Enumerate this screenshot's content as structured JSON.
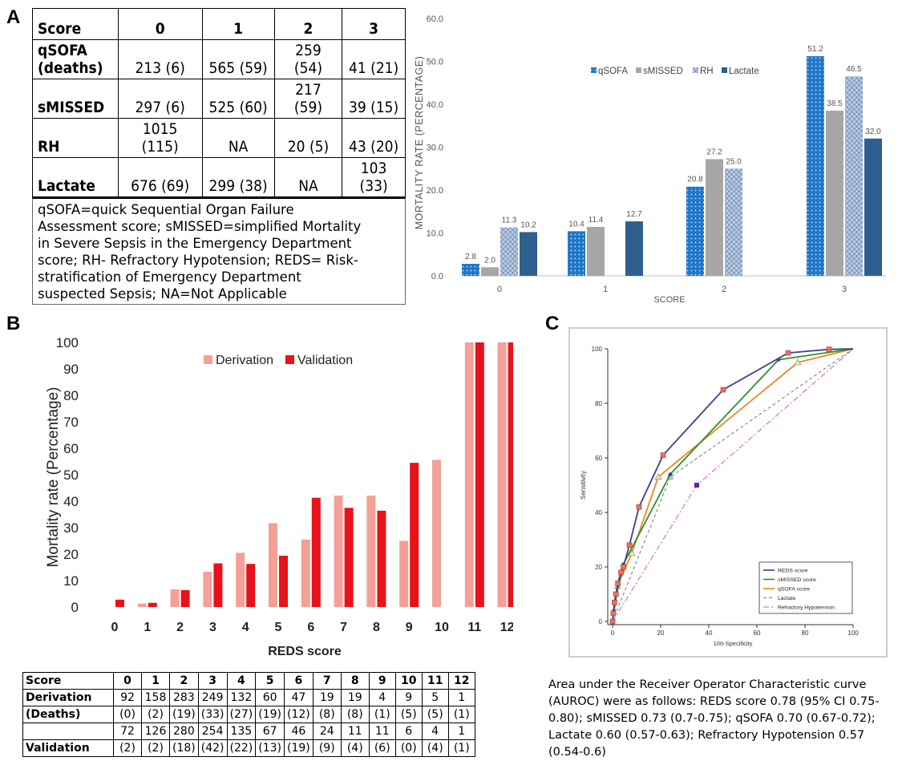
{
  "panel_labels": {
    "a": "A",
    "b": "B",
    "c": "C"
  },
  "table_a": {
    "header": [
      "Score",
      "0",
      "1",
      "2",
      "3"
    ],
    "rows": [
      {
        "label_lines": [
          "qSOFA",
          "(deaths)"
        ],
        "cells": [
          "213 (6)",
          "565 (59)",
          "259 (54)",
          "41 (21)"
        ]
      },
      {
        "label_lines": [
          "sMISSED"
        ],
        "cells": [
          "297 (6)",
          "525 (60)",
          "217 (59)",
          "39 (15)"
        ]
      },
      {
        "label_lines": [
          "RH"
        ],
        "cells": [
          "1015 (115)",
          "NA",
          "20 (5)",
          "43 (20)"
        ]
      },
      {
        "label_lines": [
          "Lactate"
        ],
        "cells": [
          "676 (69)",
          "299 (38)",
          "NA",
          "103 (33)"
        ]
      }
    ],
    "note_lines": [
      "qSOFA=quick Sequential Organ Failure",
      "Assessment score; sMISSED=simplified Mortality",
      "in Severe Sepsis in the Emergency Department",
      "score; RH- Refractory Hypotension; REDS= Risk-",
      "stratification of Emergency Department",
      "suspected Sepsis; NA=Not Applicable"
    ]
  },
  "table_b": {
    "header": [
      "Score",
      "0",
      "1",
      "2",
      "3",
      "4",
      "5",
      "6",
      "7",
      "8",
      "9",
      "10",
      "11",
      "12"
    ],
    "rows": [
      {
        "label_lines": [
          "Derivation",
          "(Deaths)"
        ],
        "cells": [
          [
            "92",
            "(0)"
          ],
          [
            "158",
            "(2)"
          ],
          [
            "283",
            "(19)"
          ],
          [
            "249",
            "(33)"
          ],
          [
            "132",
            "(27)"
          ],
          [
            "60",
            "(19)"
          ],
          [
            "47",
            "(12)"
          ],
          [
            "19",
            "(8)"
          ],
          [
            "19",
            "(8)"
          ],
          [
            "4",
            "(1)"
          ],
          [
            "9",
            "(5)"
          ],
          [
            "5",
            "(5)"
          ],
          [
            "1",
            "(1)"
          ]
        ]
      },
      {
        "label_lines": [
          "",
          "Validation"
        ],
        "cells": [
          [
            "72",
            "(2)"
          ],
          [
            "126",
            "(2)"
          ],
          [
            "280",
            "(18)"
          ],
          [
            "254",
            "(42)"
          ],
          [
            "135",
            "(22)"
          ],
          [
            "67",
            "(13)"
          ],
          [
            "46",
            "(19)"
          ],
          [
            "24",
            "(9)"
          ],
          [
            "11",
            "(4)"
          ],
          [
            "11",
            "(6)"
          ],
          [
            "6",
            "(0)"
          ],
          [
            "4",
            "(4)"
          ],
          [
            "1",
            "(1)"
          ]
        ]
      }
    ]
  },
  "auroc_text": "Area under the Receiver Operator Characteristic curve (AUROC) were as follows: REDS score 0.78 (95% CI 0.75-0.80); sMISSED 0.73 (0.7-0.75); qSOFA 0.70 (0.67-0.72); Lactate 0.60 (0.57-0.63); Refractory Hypotension 0.57 (0.54-0.6)",
  "chart_data": [
    {
      "type": "bar",
      "panel": "A",
      "categories": [
        "0",
        "1",
        "2",
        "3"
      ],
      "xlabel": "SCORE",
      "ylabel": "MORTALITY RATE (PERCENTAGE)",
      "ylim": [
        0,
        60
      ],
      "yticks": [
        "0.0",
        "10.0",
        "20.0",
        "30.0",
        "40.0",
        "50.0",
        "60.0"
      ],
      "legend_position": "top-center",
      "series": [
        {
          "name": "qSOFA",
          "color": "#1f77c9",
          "pattern": "dots",
          "values": [
            2.8,
            10.4,
            20.8,
            51.2
          ],
          "labels": [
            "2.8",
            "10.4",
            "20.8",
            "51.2"
          ]
        },
        {
          "name": "sMISSED",
          "color": "#a6a6a6",
          "pattern": "solid",
          "values": [
            2.0,
            11.4,
            27.2,
            38.5
          ],
          "labels": [
            "2.0",
            "11.4",
            "27.2",
            "38.5"
          ]
        },
        {
          "name": "RH",
          "color": "#9fb7d4",
          "pattern": "checker",
          "values": [
            11.3,
            null,
            25.0,
            46.5
          ],
          "labels": [
            "11.3",
            "",
            "25.0",
            "46.5"
          ]
        },
        {
          "name": "Lactate",
          "color": "#2e5f8f",
          "pattern": "solid",
          "values": [
            10.2,
            12.7,
            null,
            32.0
          ],
          "labels": [
            "10.2",
            "12.7",
            "",
            "32.0"
          ]
        }
      ]
    },
    {
      "type": "bar",
      "panel": "B",
      "categories": [
        "0",
        "1",
        "2",
        "3",
        "4",
        "5",
        "6",
        "7",
        "8",
        "9",
        "10",
        "11",
        "12"
      ],
      "xlabel": "REDS score",
      "ylabel": "Mortality rate (Percentage)",
      "ylim": [
        0,
        100
      ],
      "yticks": [
        "0",
        "10",
        "20",
        "30",
        "40",
        "50",
        "60",
        "70",
        "80",
        "90",
        "100"
      ],
      "legend_position": "top-center",
      "series": [
        {
          "name": "Derivation",
          "color": "#f4a096",
          "values": [
            0,
            1.3,
            6.7,
            13.3,
            20.5,
            31.7,
            25.5,
            42.1,
            42.1,
            25.0,
            55.6,
            100,
            100
          ]
        },
        {
          "name": "Validation",
          "color": "#e8121b",
          "values": [
            2.8,
            1.6,
            6.4,
            16.5,
            16.3,
            19.4,
            41.3,
            37.5,
            36.4,
            54.5,
            0,
            100,
            100
          ]
        }
      ]
    },
    {
      "type": "line",
      "panel": "C",
      "xlabel": "100-Specificity",
      "ylabel": "Sensitivity",
      "xlim": [
        0,
        100
      ],
      "ylim": [
        0,
        100
      ],
      "xticks": [
        "0",
        "20",
        "40",
        "60",
        "80",
        "100"
      ],
      "yticks": [
        "0",
        "20",
        "40",
        "60",
        "80",
        "100"
      ],
      "legend_position": "bottom-right",
      "series": [
        {
          "name": "REDS score",
          "color": "#3a3f8f",
          "dash": "solid",
          "marker_color": "#e8735a",
          "x": [
            0,
            0.3,
            0.8,
            1.4,
            2.2,
            3.5,
            4.5,
            7,
            11,
            21,
            46,
            73,
            90,
            100
          ],
          "y": [
            0,
            3,
            7,
            10,
            14,
            18,
            20,
            28,
            42,
            61,
            85,
            98.5,
            99.8,
            100
          ]
        },
        {
          "name": "sMISSED score",
          "color": "#2f8f2f",
          "dash": "solid",
          "marker_color": "#2b3bb0",
          "x": [
            0,
            0.6,
            1.7,
            4.5,
            24,
            69,
            100
          ],
          "y": [
            0,
            4,
            10,
            21,
            54,
            96,
            100
          ]
        },
        {
          "name": "qSOFA score",
          "color": "#ee8822",
          "dash": "solid",
          "marker_color": "#f4e6b0",
          "x": [
            0,
            2,
            8,
            19,
            77,
            100
          ],
          "y": [
            0,
            13,
            25,
            53,
            95,
            100
          ]
        },
        {
          "name": "Lactate",
          "color": "#777777",
          "dash": "4,3",
          "marker_color": "#b9c0d8",
          "x": [
            0,
            24,
            100
          ],
          "y": [
            0,
            53,
            100
          ]
        },
        {
          "name": "Refractory Hypotension",
          "color": "#cc55cc",
          "dash": "7,3,2,3",
          "marker_color": "#6a22aa",
          "x": [
            0,
            35,
            100
          ],
          "y": [
            0,
            50,
            100
          ]
        }
      ]
    }
  ]
}
